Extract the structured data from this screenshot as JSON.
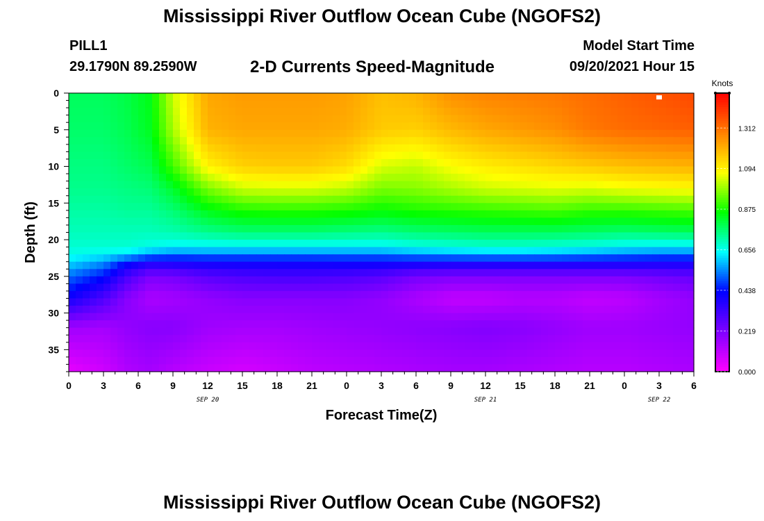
{
  "header": {
    "title": "Mississippi River Outflow Ocean Cube (NGOFS2)",
    "station_id": "PILL1",
    "station_coords": "29.1790N  89.2590W",
    "plot_title": "2-D Currents Speed-Magnitude",
    "model_label": "Model Start Time",
    "model_time": "09/20/2021 Hour 15"
  },
  "footer": {
    "title": "Mississippi River Outflow Ocean Cube (NGOFS2)"
  },
  "chart_data": {
    "type": "heatmap",
    "title": "2-D Currents Speed-Magnitude",
    "xlabel": "Forecast Time(Z)",
    "ylabel": "Depth (ft)",
    "x_ticks": [
      "0",
      "3",
      "6",
      "9",
      "12",
      "15",
      "18",
      "21",
      "0",
      "3",
      "6",
      "9",
      "12",
      "15",
      "18",
      "21",
      "0",
      "3",
      "6"
    ],
    "x_hours_range": [
      0,
      54
    ],
    "date_labels": [
      {
        "label": "SEP 20",
        "hour": 12
      },
      {
        "label": "SEP 21",
        "hour": 36
      },
      {
        "label": "SEP 22",
        "hour": 51
      }
    ],
    "y_ticks": [
      "0",
      "5",
      "10",
      "15",
      "20",
      "25",
      "30",
      "35"
    ],
    "y_tick_values": [
      0,
      5,
      10,
      15,
      20,
      25,
      30,
      35
    ],
    "ylim": [
      0,
      38
    ],
    "colorbar": {
      "title": "Knots",
      "ticks": [
        "0.000",
        "0.219",
        "0.438",
        "0.656",
        "0.875",
        "1.094",
        "1.312"
      ],
      "tick_values": [
        0,
        0.219,
        0.438,
        0.656,
        0.875,
        1.094,
        1.312
      ],
      "range": [
        0,
        1.5
      ],
      "colors": [
        "#ff00ff",
        "#7f00ff",
        "#0000ff",
        "#00ffff",
        "#00ff00",
        "#ffff00",
        "#ff8000",
        "#ff0000"
      ]
    },
    "marker": {
      "hour": 51,
      "depth": 0.3
    },
    "field": {
      "hours": [
        0,
        3,
        5,
        7,
        9,
        12,
        15,
        18,
        21,
        24,
        27,
        30,
        33,
        36,
        39,
        42,
        45,
        48,
        51,
        54
      ],
      "depths": [
        0,
        5,
        10,
        13,
        16,
        19,
        21,
        22,
        23,
        25,
        28,
        32,
        38
      ],
      "values": [
        [
          0.78,
          0.78,
          0.8,
          0.84,
          1.03,
          1.22,
          1.24,
          1.24,
          1.24,
          1.23,
          1.18,
          1.2,
          1.26,
          1.28,
          1.29,
          1.3,
          1.32,
          1.34,
          1.36,
          1.38
        ],
        [
          0.77,
          0.77,
          0.79,
          0.83,
          1.0,
          1.2,
          1.22,
          1.22,
          1.22,
          1.21,
          1.16,
          1.15,
          1.19,
          1.22,
          1.24,
          1.26,
          1.3,
          1.32,
          1.33,
          1.34
        ],
        [
          0.75,
          0.75,
          0.77,
          0.79,
          0.91,
          1.09,
          1.15,
          1.16,
          1.16,
          1.13,
          1.04,
          1.02,
          1.07,
          1.1,
          1.12,
          1.14,
          1.16,
          1.18,
          1.19,
          1.2
        ],
        [
          0.74,
          0.74,
          0.75,
          0.76,
          0.82,
          0.96,
          1.03,
          1.04,
          1.04,
          1.02,
          0.96,
          0.97,
          1.0,
          1.03,
          1.04,
          1.05,
          1.04,
          1.06,
          1.07,
          1.08
        ],
        [
          0.72,
          0.72,
          0.73,
          0.73,
          0.76,
          0.84,
          0.88,
          0.89,
          0.89,
          0.88,
          0.86,
          0.88,
          0.89,
          0.9,
          0.91,
          0.92,
          0.9,
          0.9,
          0.91,
          0.92
        ],
        [
          0.7,
          0.7,
          0.7,
          0.7,
          0.71,
          0.74,
          0.76,
          0.76,
          0.76,
          0.75,
          0.74,
          0.76,
          0.77,
          0.78,
          0.78,
          0.78,
          0.77,
          0.76,
          0.77,
          0.78
        ],
        [
          0.68,
          0.68,
          0.68,
          0.66,
          0.64,
          0.64,
          0.64,
          0.64,
          0.64,
          0.64,
          0.64,
          0.66,
          0.67,
          0.68,
          0.68,
          0.67,
          0.66,
          0.64,
          0.63,
          0.63
        ],
        [
          0.66,
          0.64,
          0.62,
          0.55,
          0.52,
          0.53,
          0.53,
          0.53,
          0.53,
          0.53,
          0.53,
          0.55,
          0.57,
          0.58,
          0.58,
          0.57,
          0.55,
          0.53,
          0.52,
          0.52
        ],
        [
          0.62,
          0.56,
          0.45,
          0.4,
          0.41,
          0.42,
          0.42,
          0.42,
          0.42,
          0.43,
          0.43,
          0.43,
          0.42,
          0.42,
          0.42,
          0.42,
          0.42,
          0.42,
          0.41,
          0.41
        ],
        [
          0.52,
          0.44,
          0.31,
          0.22,
          0.23,
          0.28,
          0.3,
          0.31,
          0.31,
          0.3,
          0.28,
          0.23,
          0.22,
          0.22,
          0.22,
          0.22,
          0.22,
          0.22,
          0.24,
          0.26
        ],
        [
          0.4,
          0.3,
          0.2,
          0.14,
          0.15,
          0.18,
          0.2,
          0.2,
          0.2,
          0.2,
          0.18,
          0.14,
          0.1,
          0.1,
          0.12,
          0.12,
          0.1,
          0.11,
          0.15,
          0.18
        ],
        [
          0.16,
          0.15,
          0.18,
          0.2,
          0.2,
          0.16,
          0.15,
          0.15,
          0.16,
          0.17,
          0.18,
          0.19,
          0.2,
          0.21,
          0.2,
          0.18,
          0.16,
          0.16,
          0.17,
          0.18
        ],
        [
          0.04,
          0.08,
          0.13,
          0.15,
          0.12,
          0.09,
          0.07,
          0.09,
          0.11,
          0.12,
          0.13,
          0.14,
          0.15,
          0.15,
          0.14,
          0.13,
          0.12,
          0.12,
          0.13,
          0.14
        ]
      ]
    }
  }
}
